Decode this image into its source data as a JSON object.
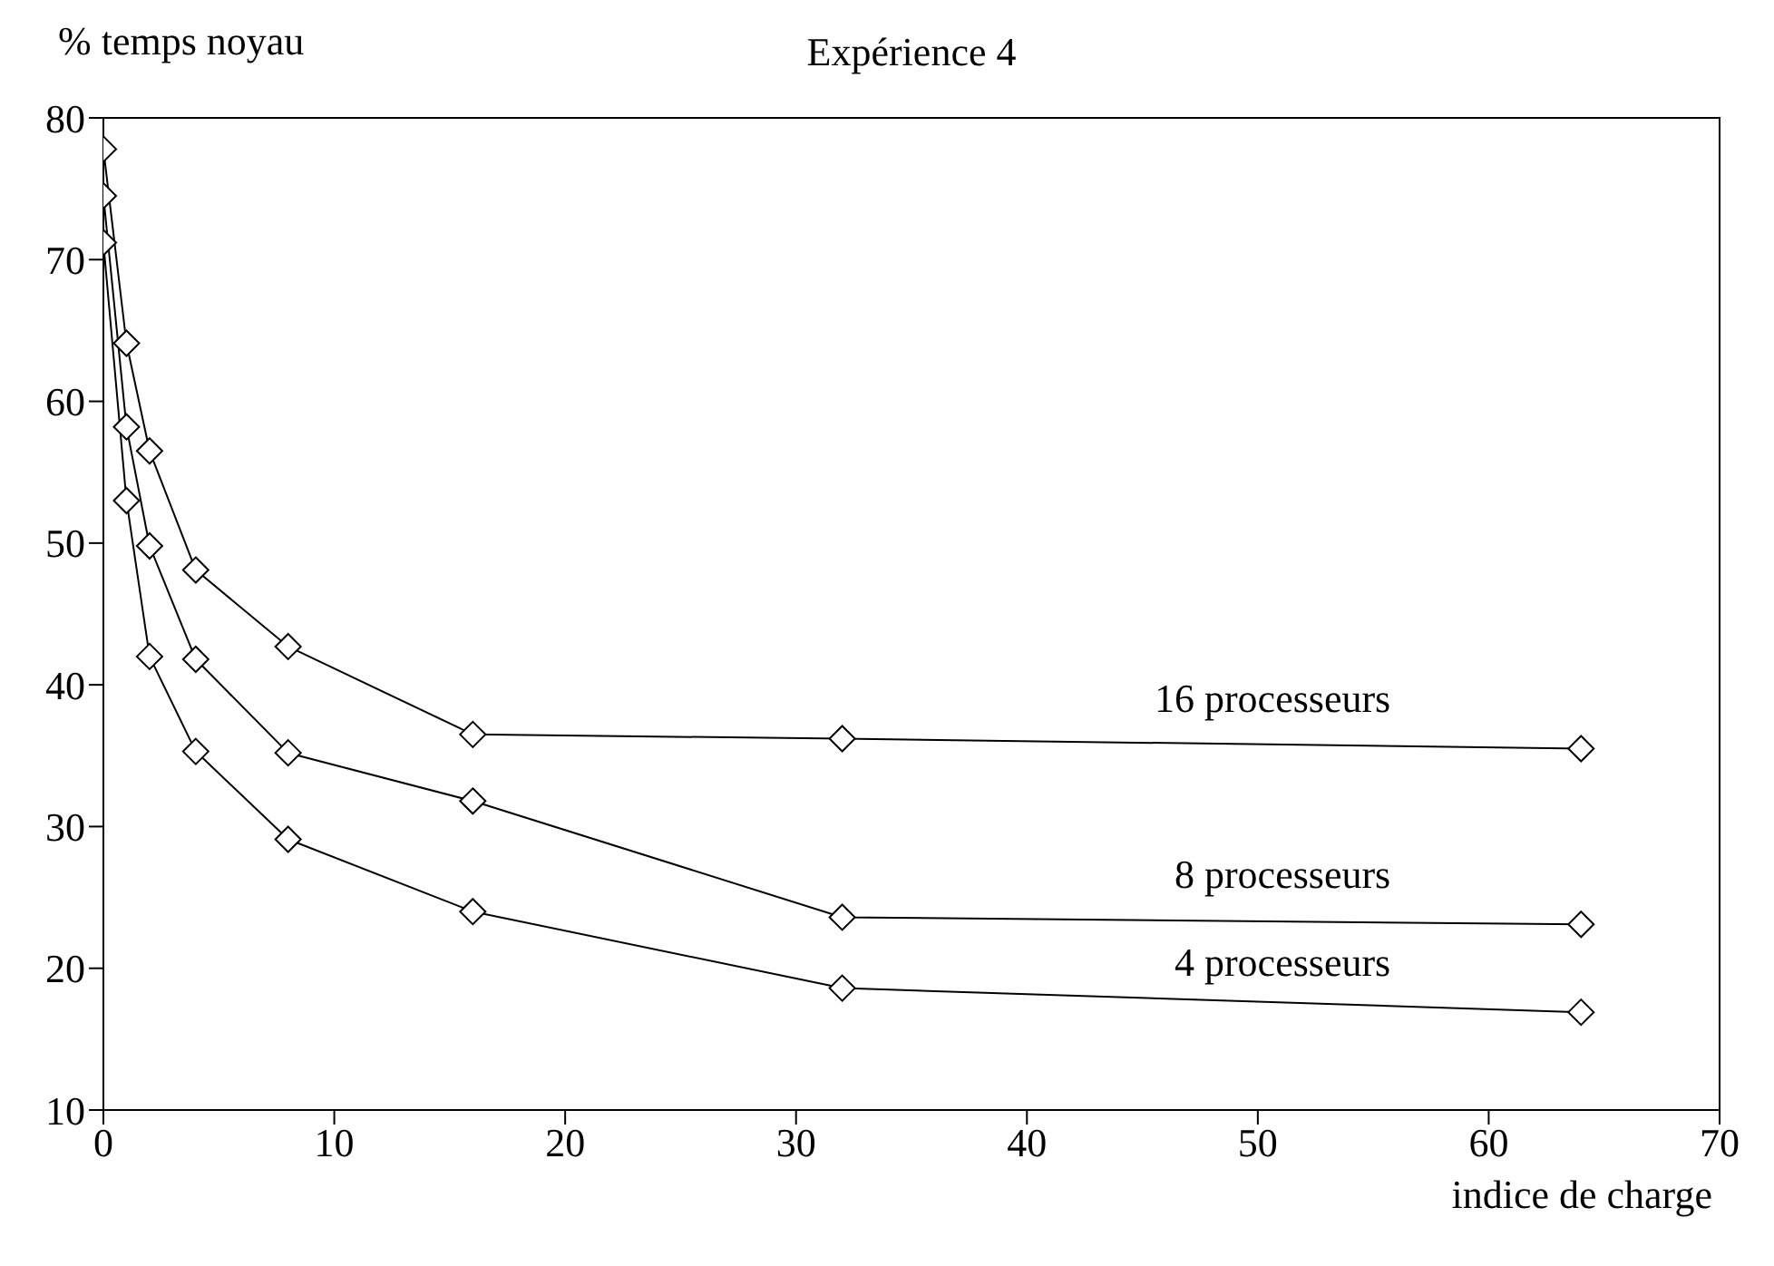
{
  "chart_data": {
    "type": "line",
    "title": "Expérience 4",
    "xlabel": "indice de charge",
    "ylabel": "% temps noyau",
    "x": [
      0,
      1,
      2,
      4,
      8,
      16,
      32,
      64
    ],
    "series": [
      {
        "name": "16 processeurs",
        "color": "#000000",
        "values": [
          77.8,
          64.1,
          56.5,
          48.1,
          42.7,
          36.5,
          36.2,
          35.5
        ]
      },
      {
        "name": "8 processeurs",
        "color": "#000000",
        "values": [
          74.5,
          58.2,
          49.8,
          41.8,
          35.2,
          31.8,
          23.6,
          23.1
        ]
      },
      {
        "name": "4 processeurs",
        "color": "#000000",
        "values": [
          71.2,
          53.0,
          42.0,
          35.3,
          29.1,
          24.0,
          18.6,
          16.9
        ]
      }
    ],
    "xlim": [
      0,
      70
    ],
    "xticks": [
      0,
      10,
      20,
      30,
      40,
      50,
      60,
      70
    ],
    "ylim": [
      10,
      80
    ],
    "yticks": [
      10,
      20,
      30,
      40,
      50,
      60,
      70,
      80
    ],
    "grid": false,
    "legend": false,
    "marker": "diamond",
    "line_style": "solid"
  }
}
